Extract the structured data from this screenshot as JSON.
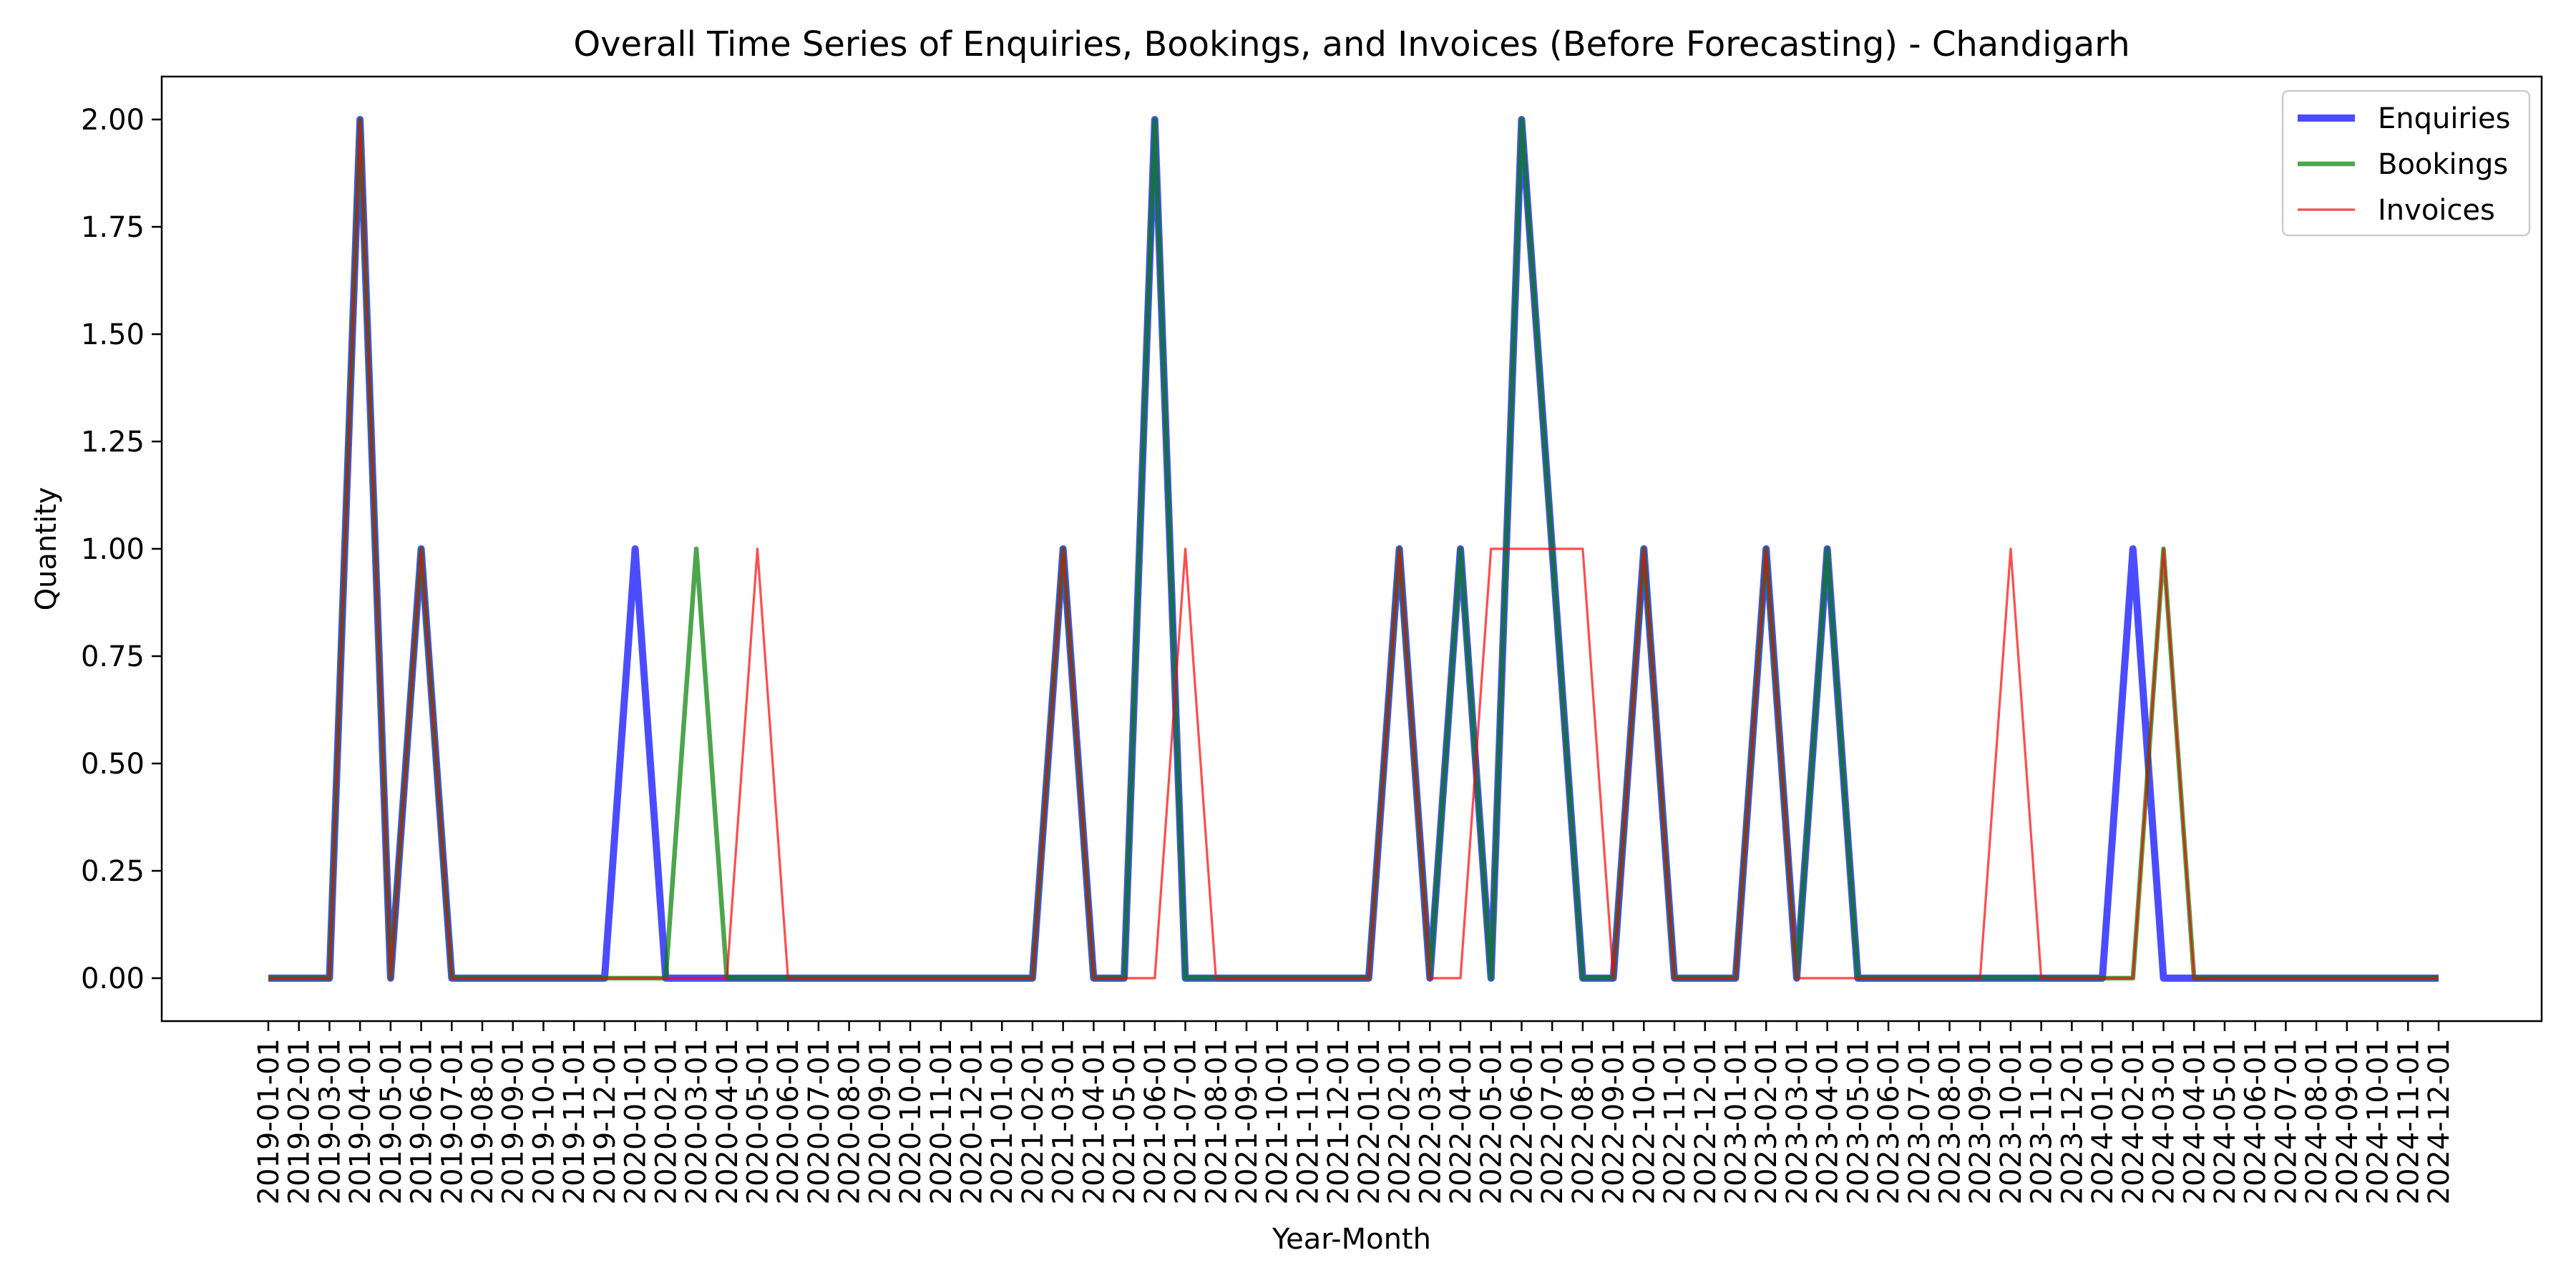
{
  "chart_data": {
    "type": "line",
    "title": "Overall Time Series of Enquiries, Bookings, and Invoices (Before Forecasting) - Chandigarh",
    "xlabel": "Year-Month",
    "ylabel": "Quantity",
    "ylim": [
      -0.1,
      2.1
    ],
    "yticks": [
      "0.00",
      "0.25",
      "0.50",
      "0.75",
      "1.00",
      "1.25",
      "1.50",
      "1.75",
      "2.00"
    ],
    "x": [
      "2019-01-01",
      "2019-02-01",
      "2019-03-01",
      "2019-04-01",
      "2019-05-01",
      "2019-06-01",
      "2019-07-01",
      "2019-08-01",
      "2019-09-01",
      "2019-10-01",
      "2019-11-01",
      "2019-12-01",
      "2020-01-01",
      "2020-02-01",
      "2020-03-01",
      "2020-04-01",
      "2020-05-01",
      "2020-06-01",
      "2020-07-01",
      "2020-08-01",
      "2020-09-01",
      "2020-10-01",
      "2020-11-01",
      "2020-12-01",
      "2021-01-01",
      "2021-02-01",
      "2021-03-01",
      "2021-04-01",
      "2021-05-01",
      "2021-06-01",
      "2021-07-01",
      "2021-08-01",
      "2021-09-01",
      "2021-10-01",
      "2021-11-01",
      "2021-12-01",
      "2022-01-01",
      "2022-02-01",
      "2022-03-01",
      "2022-04-01",
      "2022-05-01",
      "2022-06-01",
      "2022-07-01",
      "2022-08-01",
      "2022-09-01",
      "2022-10-01",
      "2022-11-01",
      "2022-12-01",
      "2023-01-01",
      "2023-02-01",
      "2023-03-01",
      "2023-04-01",
      "2023-05-01",
      "2023-06-01",
      "2023-07-01",
      "2023-08-01",
      "2023-09-01",
      "2023-10-01",
      "2023-11-01",
      "2023-12-01",
      "2024-01-01",
      "2024-02-01",
      "2024-03-01",
      "2024-04-01",
      "2024-05-01",
      "2024-06-01",
      "2024-07-01",
      "2024-08-01",
      "2024-09-01",
      "2024-10-01",
      "2024-11-01",
      "2024-12-01"
    ],
    "series": [
      {
        "name": "Enquiries",
        "color": "#0000ff",
        "opacity": 0.7,
        "width": 10,
        "values": [
          0,
          0,
          0,
          2,
          0,
          1,
          0,
          0,
          0,
          0,
          0,
          0,
          1,
          0,
          0,
          0,
          0,
          0,
          0,
          0,
          0,
          0,
          0,
          0,
          0,
          0,
          1,
          0,
          0,
          2,
          0,
          0,
          0,
          0,
          0,
          0,
          0,
          1,
          0,
          1,
          0,
          2,
          1,
          0,
          0,
          1,
          0,
          0,
          0,
          1,
          0,
          1,
          0,
          0,
          0,
          0,
          0,
          0,
          0,
          0,
          0,
          1,
          0,
          0,
          0,
          0,
          0,
          0,
          0,
          0,
          0,
          0
        ]
      },
      {
        "name": "Bookings",
        "color": "#008000",
        "opacity": 0.7,
        "width": 6.5,
        "values": [
          0,
          0,
          0,
          2,
          0,
          1,
          0,
          0,
          0,
          0,
          0,
          0,
          0,
          0,
          1,
          0,
          0,
          0,
          0,
          0,
          0,
          0,
          0,
          0,
          0,
          0,
          1,
          0,
          0,
          2,
          0,
          0,
          0,
          0,
          0,
          0,
          0,
          1,
          0,
          1,
          0,
          2,
          1,
          0,
          0,
          1,
          0,
          0,
          0,
          1,
          0,
          1,
          0,
          0,
          0,
          0,
          0,
          0,
          0,
          0,
          0,
          0,
          1,
          0,
          0,
          0,
          0,
          0,
          0,
          0,
          0,
          0
        ]
      },
      {
        "name": "Invoices",
        "color": "#ff0000",
        "opacity": 0.7,
        "width": 3.2,
        "values": [
          0,
          0,
          0,
          2,
          0,
          1,
          0,
          0,
          0,
          0,
          0,
          0,
          0,
          0,
          0,
          0,
          1,
          0,
          0,
          0,
          0,
          0,
          0,
          0,
          0,
          0,
          1,
          0,
          0,
          0,
          1,
          0,
          0,
          0,
          0,
          0,
          0,
          1,
          0,
          0,
          1,
          1,
          1,
          1,
          0,
          1,
          0,
          0,
          0,
          1,
          0,
          0,
          0,
          0,
          0,
          0,
          0,
          1,
          0,
          0,
          0,
          0,
          1,
          0,
          0,
          0,
          0,
          0,
          0,
          0,
          0,
          0
        ]
      }
    ],
    "legend": "top-right",
    "grid": false
  }
}
